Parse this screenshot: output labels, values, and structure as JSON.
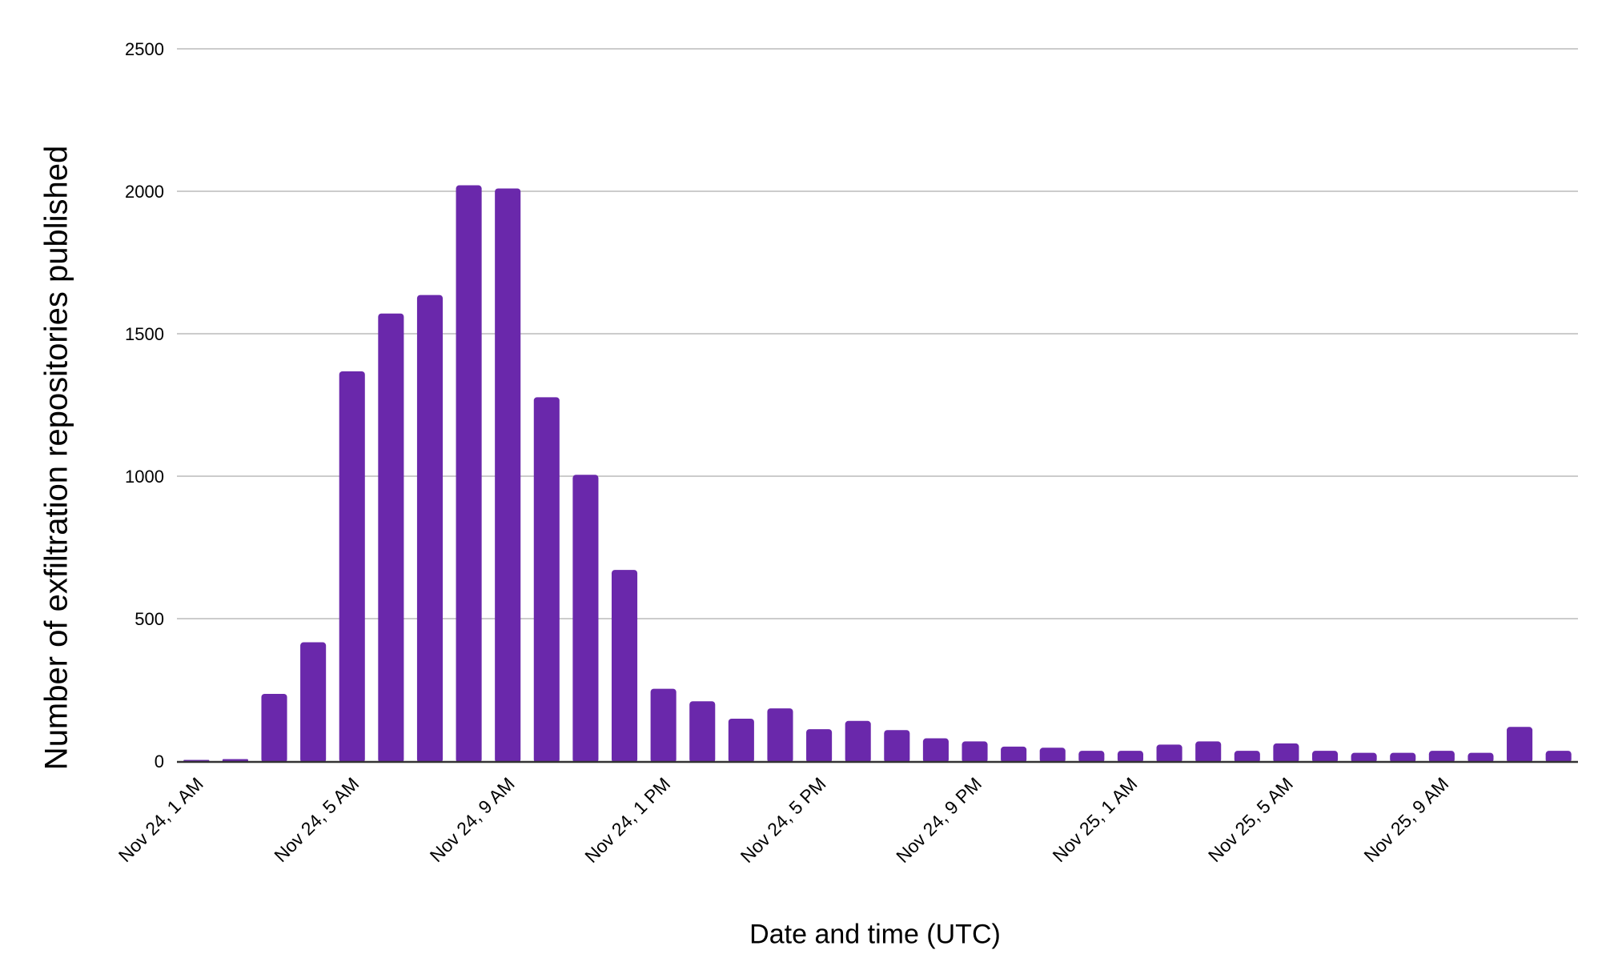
{
  "chart_data": {
    "type": "bar",
    "title": "",
    "xlabel": "Date and time (UTC)",
    "ylabel": "Number of exfiltration repositories published",
    "ylim": [
      0,
      2500
    ],
    "yticks": [
      0,
      500,
      1000,
      1500,
      2000,
      2500
    ],
    "grid": true,
    "legend": null,
    "bar_color": "#6a28ab",
    "x_tick_labels": [
      {
        "index": 0,
        "label": "Nov 24, 1 AM"
      },
      {
        "index": 4,
        "label": "Nov 24, 5 AM"
      },
      {
        "index": 8,
        "label": "Nov 24, 9 AM"
      },
      {
        "index": 12,
        "label": "Nov 24, 1 PM"
      },
      {
        "index": 16,
        "label": "Nov 24, 5 PM"
      },
      {
        "index": 20,
        "label": "Nov 24, 9 PM"
      },
      {
        "index": 24,
        "label": "Nov 25, 1 AM"
      },
      {
        "index": 28,
        "label": "Nov 25, 5 AM"
      },
      {
        "index": 32,
        "label": "Nov 25, 9 AM"
      }
    ],
    "categories": [
      "Nov 24, 1 AM",
      "Nov 24, 2 AM",
      "Nov 24, 3 AM",
      "Nov 24, 4 AM",
      "Nov 24, 5 AM",
      "Nov 24, 6 AM",
      "Nov 24, 7 AM",
      "Nov 24, 8 AM",
      "Nov 24, 9 AM",
      "Nov 24, 10 AM",
      "Nov 24, 11 AM",
      "Nov 24, 12 PM",
      "Nov 24, 1 PM",
      "Nov 24, 2 PM",
      "Nov 24, 3 PM",
      "Nov 24, 4 PM",
      "Nov 24, 5 PM",
      "Nov 24, 6 PM",
      "Nov 24, 7 PM",
      "Nov 24, 8 PM",
      "Nov 24, 9 PM",
      "Nov 24, 10 PM",
      "Nov 24, 11 PM",
      "Nov 25, 12 AM",
      "Nov 25, 1 AM",
      "Nov 25, 2 AM",
      "Nov 25, 3 AM",
      "Nov 25, 4 AM",
      "Nov 25, 5 AM",
      "Nov 25, 6 AM",
      "Nov 25, 7 AM",
      "Nov 25, 8 AM",
      "Nov 25, 9 AM",
      "Nov 25, 10 AM",
      "Nov 25, 11 AM",
      "Nov 25, 12 PM"
    ],
    "values": [
      2,
      7,
      236,
      417,
      1368,
      1571,
      1636,
      2021,
      2010,
      1277,
      1005,
      671,
      254,
      210,
      149,
      185,
      112,
      141,
      109,
      80,
      69,
      51,
      47,
      36,
      36,
      58,
      69,
      36,
      62,
      36,
      29,
      29,
      36,
      29,
      120,
      36
    ]
  }
}
